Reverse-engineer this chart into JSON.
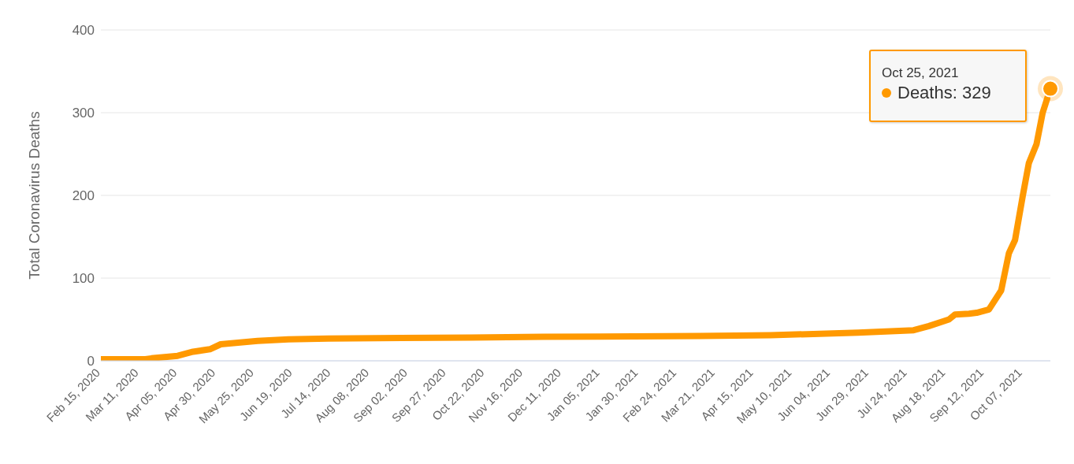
{
  "chart_data": {
    "type": "line",
    "ylabel": "Total Coronavirus Deaths",
    "x": [
      "2020-02-15",
      "2020-03-15",
      "2020-03-19",
      "2020-04-05",
      "2020-04-15",
      "2020-04-26",
      "2020-05-03",
      "2020-05-27",
      "2020-06-16",
      "2020-07-12",
      "2020-10-13",
      "2020-11-29",
      "2021-03-11",
      "2021-04-26",
      "2021-06-22",
      "2021-07-28",
      "2021-08-07",
      "2021-08-20",
      "2021-08-24",
      "2021-09-02",
      "2021-09-07",
      "2021-09-15",
      "2021-09-23",
      "2021-09-28",
      "2021-10-02",
      "2021-10-07",
      "2021-10-11",
      "2021-10-16",
      "2021-10-20",
      "2021-10-25"
    ],
    "series": [
      {
        "color": "#ff9900",
        "values": [
          2,
          2,
          3,
          6,
          11,
          14,
          20,
          24,
          26,
          27,
          28,
          29,
          30,
          31,
          34,
          37,
          42,
          50,
          56,
          57,
          58,
          62,
          85,
          130,
          146,
          199,
          239,
          262,
          300,
          329
        ]
      }
    ],
    "xlim": [
      "2020-02-15",
      "2021-10-25"
    ],
    "xticks": [
      {
        "value": "2020-02-15",
        "label": "Feb 15, 2020"
      },
      {
        "value": "2020-03-11",
        "label": "Mar 11, 2020"
      },
      {
        "value": "2020-04-05",
        "label": "Apr 05, 2020"
      },
      {
        "value": "2020-04-30",
        "label": "Apr 30, 2020"
      },
      {
        "value": "2020-05-25",
        "label": "May 25, 2020"
      },
      {
        "value": "2020-06-19",
        "label": "Jun 19, 2020"
      },
      {
        "value": "2020-07-14",
        "label": "Jul 14, 2020"
      },
      {
        "value": "2020-08-08",
        "label": "Aug 08, 2020"
      },
      {
        "value": "2020-09-02",
        "label": "Sep 02, 2020"
      },
      {
        "value": "2020-09-27",
        "label": "Sep 27, 2020"
      },
      {
        "value": "2020-10-22",
        "label": "Oct 22, 2020"
      },
      {
        "value": "2020-11-16",
        "label": "Nov 16, 2020"
      },
      {
        "value": "2020-12-11",
        "label": "Dec 11, 2020"
      },
      {
        "value": "2021-01-05",
        "label": "Jan 05, 2021"
      },
      {
        "value": "2021-01-30",
        "label": "Jan 30, 2021"
      },
      {
        "value": "2021-02-24",
        "label": "Feb 24, 2021"
      },
      {
        "value": "2021-03-21",
        "label": "Mar 21, 2021"
      },
      {
        "value": "2021-04-15",
        "label": "Apr 15, 2021"
      },
      {
        "value": "2021-05-10",
        "label": "May 10, 2021"
      },
      {
        "value": "2021-06-04",
        "label": "Jun 04, 2021"
      },
      {
        "value": "2021-06-29",
        "label": "Jun 29, 2021"
      },
      {
        "value": "2021-07-24",
        "label": "Jul 24, 2021"
      },
      {
        "value": "2021-08-18",
        "label": "Aug 18, 2021"
      },
      {
        "value": "2021-09-12",
        "label": "Sep 12, 2021"
      },
      {
        "value": "2021-10-07",
        "label": "Oct 07, 2021"
      }
    ],
    "ylim": [
      0,
      400
    ],
    "yticks": [
      0,
      100,
      200,
      300,
      400
    ],
    "grid": "y",
    "legend": false,
    "marker": "none",
    "line_style": "solid",
    "annotations": [
      "Oct 25, 2021",
      "Deaths: 329"
    ]
  }
}
